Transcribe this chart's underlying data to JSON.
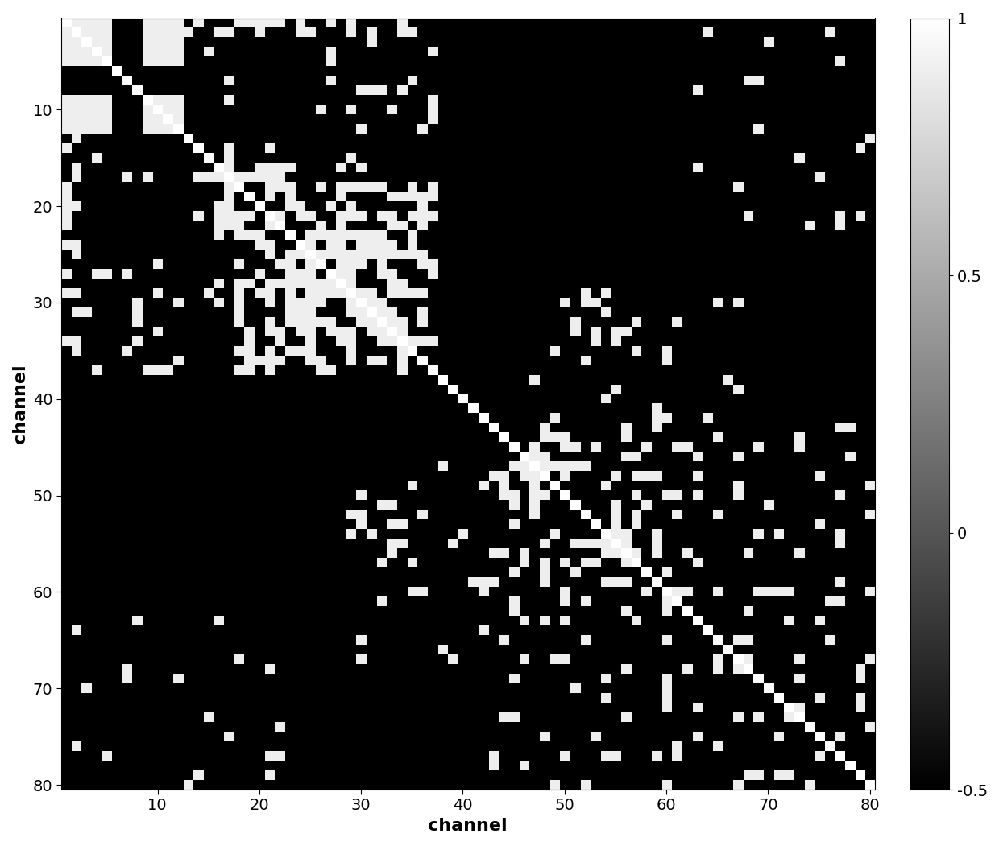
{
  "n_channels": 80,
  "vmin": -0.5,
  "vmax": 1.0,
  "colormap": "gray",
  "xlabel": "channel",
  "ylabel": "channel",
  "xticks": [
    10,
    20,
    30,
    40,
    50,
    60,
    70,
    80
  ],
  "yticks": [
    10,
    20,
    30,
    40,
    50,
    60,
    70,
    80
  ],
  "colorbar_ticks": [
    -0.5,
    0,
    0.5,
    1.0
  ],
  "colorbar_ticklabels": [
    "-0.5",
    "0",
    "0.5",
    "1"
  ],
  "figsize": [
    12.4,
    10.51
  ],
  "dpi": 100,
  "seed": 7,
  "background_color": "#ffffff"
}
